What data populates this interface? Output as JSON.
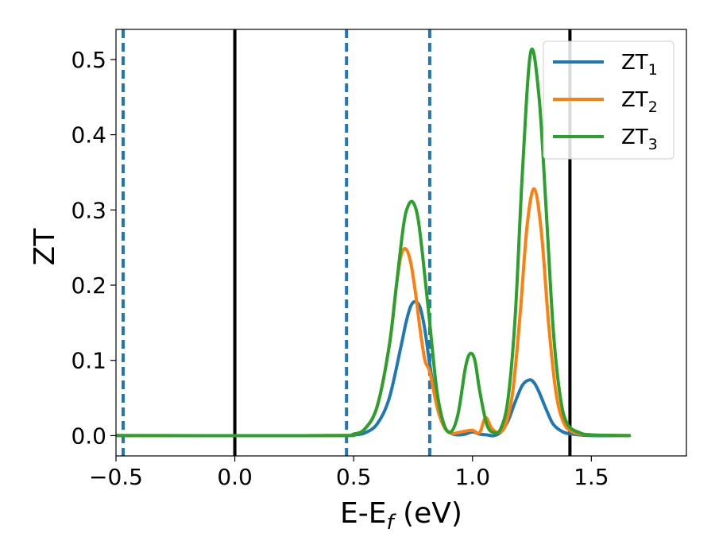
{
  "chart_data": {
    "type": "line",
    "xlabel": "E-E",
    "xlabel_sub": "f",
    "xlabel_unit": " (eV)",
    "ylabel": "ZT",
    "xlim": [
      -0.5,
      1.9
    ],
    "ylim": [
      -0.027,
      0.54
    ],
    "xticks": [
      -0.5,
      0.0,
      0.5,
      1.0,
      1.5
    ],
    "xtick_labels": [
      "−0.5",
      "0.0",
      "0.5",
      "1.0",
      "1.5"
    ],
    "yticks": [
      0.0,
      0.1,
      0.2,
      0.3,
      0.4,
      0.5
    ],
    "ytick_labels": [
      "0.0",
      "0.1",
      "0.2",
      "0.3",
      "0.4",
      "0.5"
    ],
    "grid": false,
    "legend_position": "top-right",
    "vlines_solid": [
      0.0,
      1.41
    ],
    "vlines_dashed": [
      -0.47,
      0.47,
      0.82
    ],
    "series": [
      {
        "name": "ZT",
        "sub": "1",
        "color": "#1f77b4",
        "x": [
          -0.5,
          0.4,
          0.5,
          0.55,
          0.6,
          0.65,
          0.7,
          0.72,
          0.74,
          0.76,
          0.78,
          0.8,
          0.82,
          0.85,
          0.88,
          0.91,
          0.94,
          0.97,
          1.0,
          1.03,
          1.06,
          1.09,
          1.12,
          1.15,
          1.18,
          1.21,
          1.24,
          1.26,
          1.28,
          1.31,
          1.34,
          1.38,
          1.42,
          1.5,
          1.66
        ],
        "y": [
          0.0,
          0.0,
          0.001,
          0.004,
          0.016,
          0.05,
          0.12,
          0.15,
          0.172,
          0.178,
          0.17,
          0.14,
          0.095,
          0.04,
          0.012,
          0.003,
          0.001,
          0.002,
          0.005,
          0.002,
          0.001,
          0.0,
          0.005,
          0.02,
          0.045,
          0.067,
          0.074,
          0.07,
          0.058,
          0.035,
          0.015,
          0.005,
          0.002,
          0.0,
          0.0
        ]
      },
      {
        "name": "ZT",
        "sub": "2",
        "color": "#ff7f0e",
        "x": [
          -0.5,
          0.4,
          0.5,
          0.55,
          0.6,
          0.65,
          0.68,
          0.7,
          0.72,
          0.74,
          0.76,
          0.78,
          0.8,
          0.82,
          0.85,
          0.88,
          0.91,
          0.94,
          0.97,
          1.0,
          1.03,
          1.055,
          1.08,
          1.11,
          1.14,
          1.17,
          1.2,
          1.23,
          1.26,
          1.29,
          1.32,
          1.35,
          1.38,
          1.42,
          1.5,
          1.66
        ],
        "y": [
          0.0,
          0.0,
          0.002,
          0.01,
          0.04,
          0.12,
          0.2,
          0.24,
          0.248,
          0.23,
          0.19,
          0.14,
          0.1,
          0.085,
          0.04,
          0.012,
          0.003,
          0.004,
          0.006,
          0.007,
          0.004,
          0.024,
          0.01,
          0.004,
          0.015,
          0.06,
          0.16,
          0.28,
          0.328,
          0.27,
          0.15,
          0.06,
          0.02,
          0.005,
          0.001,
          0.0
        ]
      },
      {
        "name": "ZT",
        "sub": "3",
        "color": "#2ca02c",
        "x": [
          -0.5,
          0.4,
          0.5,
          0.55,
          0.6,
          0.65,
          0.68,
          0.71,
          0.73,
          0.75,
          0.77,
          0.79,
          0.82,
          0.85,
          0.88,
          0.91,
          0.94,
          0.97,
          0.99,
          1.01,
          1.03,
          1.06,
          1.09,
          1.12,
          1.15,
          1.18,
          1.21,
          1.245,
          1.28,
          1.31,
          1.34,
          1.37,
          1.4,
          1.45,
          1.5,
          1.66
        ],
        "y": [
          0.0,
          0.0,
          0.002,
          0.01,
          0.04,
          0.12,
          0.2,
          0.28,
          0.306,
          0.31,
          0.29,
          0.24,
          0.15,
          0.06,
          0.015,
          0.005,
          0.03,
          0.09,
          0.109,
          0.1,
          0.06,
          0.015,
          0.004,
          0.01,
          0.05,
          0.16,
          0.35,
          0.51,
          0.45,
          0.3,
          0.14,
          0.05,
          0.015,
          0.004,
          0.001,
          0.0
        ]
      }
    ]
  }
}
